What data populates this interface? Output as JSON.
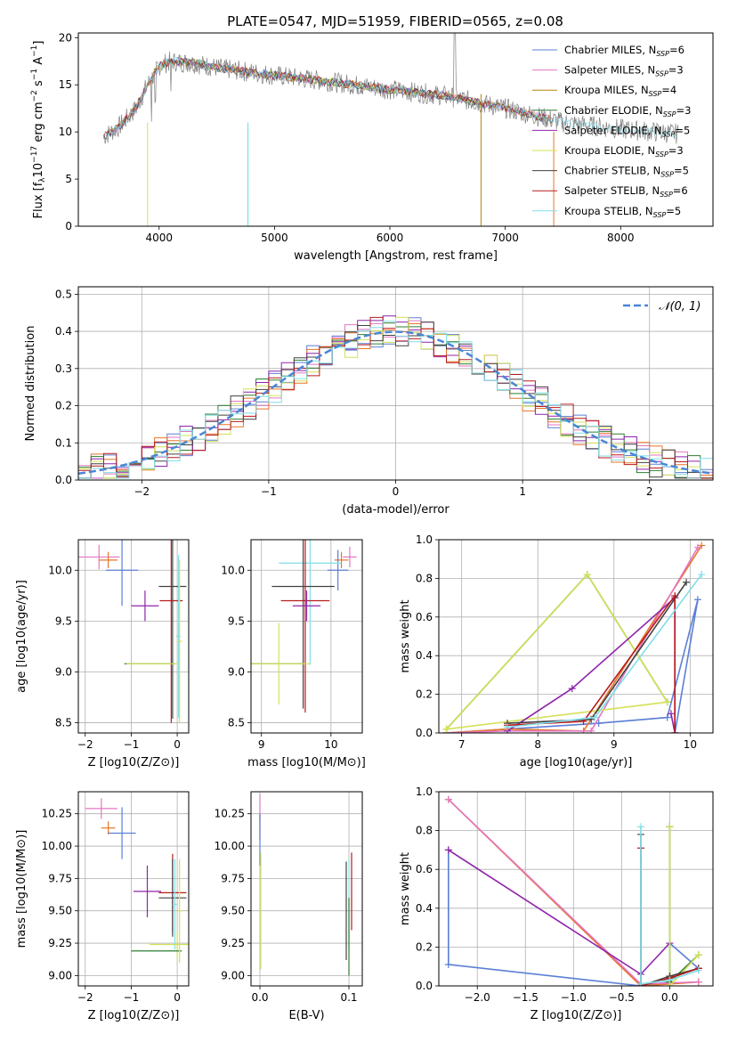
{
  "figure_title": "PLATE=0547, MJD=51959, FIBERID=0565, z=0.08",
  "colors": {
    "Chabrier MILES": "#5b7fd6",
    "Salpeter MILES": "#e377c2",
    "Kroupa MILES": "#b8860b",
    "Chabrier ELODIE": "#2e7d32",
    "Salpeter ELODIE": "#8e24aa",
    "Kroupa ELODIE": "#d4e157",
    "Chabrier STELIB": "#424242",
    "Salpeter STELIB": "#b71c1c",
    "Kroupa STELIB": "#80deea",
    "orange": "#e8742a",
    "data": "#808080",
    "gaussian": "#4a86d4"
  },
  "chart_data": [
    {
      "id": "spectrum",
      "type": "line",
      "title": "PLATE=0547, MJD=51959, FIBERID=0565, z=0.08",
      "xlabel": "wavelength [Angstrom, rest frame]",
      "ylabel": "Flux [f_λ 10^-17 erg cm^-2 s^-1 A^-1]",
      "xlim": [
        3300,
        8800
      ],
      "ylim": [
        0,
        20.5
      ],
      "xticks": [
        4000,
        5000,
        6000,
        7000,
        8000
      ],
      "yticks": [
        0,
        5,
        10,
        15,
        20
      ],
      "grid": false,
      "legend_position": "top-right",
      "legend": [
        {
          "name": "Chabrier MILES",
          "nssp": "6"
        },
        {
          "name": "Salpeter MILES",
          "nssp": "3"
        },
        {
          "name": "Kroupa MILES",
          "nssp": "4"
        },
        {
          "name": "Chabrier ELODIE",
          "nssp": "3"
        },
        {
          "name": "Salpeter ELODIE",
          "nssp": "5"
        },
        {
          "name": "Kroupa ELODIE",
          "nssp": "3"
        },
        {
          "name": "Chabrier STELIB",
          "nssp": "5"
        },
        {
          "name": "Salpeter STELIB",
          "nssp": "6"
        },
        {
          "name": "Kroupa STELIB",
          "nssp": "5"
        }
      ],
      "continuum": {
        "x": [
          3520,
          3650,
          3800,
          3900,
          4000,
          4100,
          4300,
          4500,
          5000,
          5500,
          6000,
          6500,
          7000,
          7500,
          8000,
          8500
        ],
        "y": [
          9.5,
          10.5,
          12.5,
          15,
          17,
          17.5,
          17.3,
          16.8,
          16,
          15.3,
          14.5,
          13.8,
          12.5,
          11,
          10.3,
          9.8
        ]
      }
    },
    {
      "id": "residuals",
      "type": "line",
      "xlabel": "(data-model)/error",
      "ylabel": "Normed distribution",
      "xlim": [
        -2.5,
        2.5
      ],
      "ylim": [
        0,
        0.52
      ],
      "xticks": [
        -2,
        -1,
        0,
        1,
        2
      ],
      "yticks": [
        0.0,
        0.1,
        0.2,
        0.3,
        0.4,
        0.5
      ],
      "grid": true,
      "legend_position": "top-right",
      "legend_label": "𝒩(0, 1)"
    },
    {
      "id": "age_vs_Z",
      "type": "scatter",
      "xlabel": "Z [log10(Z/Z⊙)]",
      "ylabel": "age [log10(age/yr)]",
      "xlim": [
        -2.15,
        0.25
      ],
      "ylim": [
        8.4,
        10.3
      ],
      "xticks": [
        -2,
        -1,
        0
      ],
      "yticks": [
        8.5,
        9.0,
        9.5,
        10.0
      ],
      "points": [
        {
          "series": "Salpeter MILES",
          "x": -1.7,
          "y": 10.13,
          "xerr": 0.45,
          "yerr": 0.12
        },
        {
          "series": "orange",
          "x": -1.5,
          "y": 10.1,
          "xerr": 0.2,
          "yerr": 0.08
        },
        {
          "series": "Chabrier MILES",
          "x": -1.2,
          "y": 10.0,
          "xerr": 0.35,
          "yerr": 0.35
        },
        {
          "series": "Salpeter ELODIE",
          "x": -0.7,
          "y": 9.65,
          "xerr": 0.3,
          "yerr": 0.15
        },
        {
          "series": "Chabrier STELIB",
          "x": -0.1,
          "y": 9.84,
          "xerr": 0.3,
          "yerr": 1.3
        },
        {
          "series": "Salpeter STELIB",
          "x": -0.13,
          "y": 9.7,
          "xerr": 0.25,
          "yerr": 1.2
        },
        {
          "series": "Chabrier ELODIE",
          "x": -0.6,
          "y": 9.08,
          "xerr": 0.55,
          "yerr": 0.0
        },
        {
          "series": "Kroupa ELODIE",
          "x": -0.55,
          "y": 9.08,
          "xerr": 0.55,
          "yerr": 0.0
        },
        {
          "series": "Kroupa STELIB",
          "x": 0.03,
          "y": 9.35,
          "xerr": 0.05,
          "yerr": 0.8
        },
        {
          "series": "Kroupa ELODIE",
          "x": 0.05,
          "y": 9.3,
          "xerr": 0.05,
          "yerr": 0.8
        }
      ]
    },
    {
      "id": "age_vs_mass",
      "type": "scatter",
      "xlabel": "mass [log10(M/M⊙)]",
      "xlim": [
        8.85,
        10.45
      ],
      "ylim": [
        8.4,
        10.3
      ],
      "xticks": [
        9,
        10
      ],
      "yticks": [
        8.5,
        9.0,
        9.5,
        10.0
      ],
      "points": [
        {
          "series": "Salpeter MILES",
          "x": 10.27,
          "y": 10.13,
          "xerr": 0.1,
          "yerr": 0.1
        },
        {
          "series": "orange",
          "x": 10.15,
          "y": 10.1,
          "xerr": 0.1,
          "yerr": 0.08
        },
        {
          "series": "Chabrier MILES",
          "x": 10.1,
          "y": 10.0,
          "xerr": 0.15,
          "yerr": 0.2
        },
        {
          "series": "Kroupa STELIB",
          "x": 9.7,
          "y": 10.07,
          "xerr": 0.45,
          "yerr": 1.0
        },
        {
          "series": "Chabrier STELIB",
          "x": 9.6,
          "y": 9.84,
          "xerr": 0.45,
          "yerr": 1.2
        },
        {
          "series": "Salpeter STELIB",
          "x": 9.63,
          "y": 9.7,
          "xerr": 0.35,
          "yerr": 1.1
        },
        {
          "series": "Salpeter ELODIE",
          "x": 9.65,
          "y": 9.65,
          "xerr": 0.2,
          "yerr": 0.15
        },
        {
          "series": "Chabrier ELODIE",
          "x": 9.2,
          "y": 9.08,
          "xerr": 0.4,
          "yerr": 0.0
        },
        {
          "series": "Kroupa ELODIE",
          "x": 9.25,
          "y": 9.08,
          "xerr": 0.45,
          "yerr": 0.4
        }
      ]
    },
    {
      "id": "weight_vs_age",
      "type": "line",
      "xlabel": "age [log10(age/yr)]",
      "ylabel": "mass weight",
      "xlim": [
        6.7,
        10.3
      ],
      "ylim": [
        0,
        1.0
      ],
      "xticks": [
        7,
        8,
        9,
        10
      ],
      "yticks": [
        0.0,
        0.2,
        0.4,
        0.6,
        0.8,
        1.0
      ],
      "series": [
        {
          "name": "Chabrier MILES",
          "x": [
            6.8,
            7.6,
            8.8,
            9.7,
            10.1,
            9.8
          ],
          "y": [
            0.0,
            0.02,
            0.05,
            0.08,
            0.69,
            0.0
          ]
        },
        {
          "name": "orange",
          "x": [
            6.8,
            7.6,
            8.6,
            10.15
          ],
          "y": [
            0.0,
            0.02,
            0.01,
            0.97
          ]
        },
        {
          "name": "Salpeter MILES",
          "x": [
            6.8,
            7.6,
            8.7,
            10.1
          ],
          "y": [
            0.0,
            0.01,
            0.01,
            0.96
          ]
        },
        {
          "name": "Chabrier ELODIE",
          "x": [
            6.8,
            8.65,
            9.7
          ],
          "y": [
            0.02,
            0.82,
            0.16
          ]
        },
        {
          "name": "Kroupa ELODIE",
          "x": [
            6.8,
            8.65,
            9.7,
            6.8
          ],
          "y": [
            0.02,
            0.82,
            0.16,
            0.02
          ]
        },
        {
          "name": "Salpeter ELODIE",
          "x": [
            7.6,
            8.45,
            9.8,
            9.8,
            9.75
          ],
          "y": [
            0.01,
            0.23,
            0.7,
            0.0,
            0.1
          ]
        },
        {
          "name": "Chabrier STELIB",
          "x": [
            7.6,
            8.7,
            9.95
          ],
          "y": [
            0.05,
            0.07,
            0.78
          ]
        },
        {
          "name": "Salpeter STELIB",
          "x": [
            7.6,
            8.6,
            9.8,
            9.8
          ],
          "y": [
            0.04,
            0.06,
            0.71,
            0.0
          ]
        },
        {
          "name": "Kroupa STELIB",
          "x": [
            7.6,
            8.75,
            10.15
          ],
          "y": [
            0.03,
            0.08,
            0.82
          ]
        }
      ]
    },
    {
      "id": "mass_vs_Z",
      "type": "scatter",
      "xlabel": "Z [log10(Z/Z⊙)]",
      "ylabel": "mass [log10(M/M⊙)]",
      "xlim": [
        -2.15,
        0.25
      ],
      "ylim": [
        8.92,
        10.42
      ],
      "xticks": [
        -2,
        -1,
        0
      ],
      "yticks": [
        9.0,
        9.25,
        9.5,
        9.75,
        10.0,
        10.25
      ],
      "points": [
        {
          "series": "Salpeter MILES",
          "x": -1.65,
          "y": 10.29,
          "xerr": 0.35,
          "yerr": 0.08
        },
        {
          "series": "orange",
          "x": -1.5,
          "y": 10.14,
          "xerr": 0.15,
          "yerr": 0.05
        },
        {
          "series": "Chabrier MILES",
          "x": -1.2,
          "y": 10.1,
          "xerr": 0.3,
          "yerr": 0.2
        },
        {
          "series": "Salpeter ELODIE",
          "x": -0.65,
          "y": 9.65,
          "xerr": 0.3,
          "yerr": 0.2
        },
        {
          "series": "Salpeter STELIB",
          "x": -0.1,
          "y": 9.64,
          "xerr": 0.3,
          "yerr": 0.3
        },
        {
          "series": "Chabrier STELIB",
          "x": -0.1,
          "y": 9.6,
          "xerr": 0.3,
          "yerr": 0.3
        },
        {
          "series": "Kroupa STELIB",
          "x": -0.05,
          "y": 9.55,
          "xerr": 0.05,
          "yerr": 0.35
        },
        {
          "series": "Kroupa ELODIE",
          "x": 0.0,
          "y": 9.24,
          "xerr": 0.6,
          "yerr": 0.1
        },
        {
          "series": "Chabrier ELODIE",
          "x": -0.45,
          "y": 9.19,
          "xerr": 0.55,
          "yerr": 0.0
        },
        {
          "series": "Kroupa ELODIE",
          "x": 0.05,
          "y": 9.5,
          "xerr": 0.05,
          "yerr": 0.4
        }
      ]
    },
    {
      "id": "mass_vs_EBV",
      "type": "scatter",
      "xlabel": "E(B-V)",
      "xlim": [
        -0.01,
        0.115
      ],
      "ylim": [
        8.92,
        10.42
      ],
      "xticks": [
        0.0,
        0.1
      ],
      "yticks": [
        9.0,
        9.25,
        9.5,
        9.75,
        10.0,
        10.25
      ],
      "points": [
        {
          "series": "Salpeter MILES",
          "x": 0.0,
          "y": 10.3,
          "yerr": 0.1
        },
        {
          "series": "orange",
          "x": 0.0,
          "y": 10.15,
          "yerr": 0.1
        },
        {
          "series": "Chabrier MILES",
          "x": 0.0,
          "y": 10.05,
          "yerr": 0.2
        },
        {
          "series": "Kroupa ELODIE",
          "x": 0.001,
          "y": 9.5,
          "yerr": 0.45
        },
        {
          "series": "Chabrier STELIB",
          "x": 0.097,
          "y": 9.5,
          "yerr": 0.38
        },
        {
          "series": "Kroupa STELIB",
          "x": 0.1,
          "y": 9.55,
          "yerr": 0.35
        },
        {
          "series": "Salpeter STELIB",
          "x": 0.103,
          "y": 9.65,
          "yerr": 0.3
        },
        {
          "series": "Chabrier ELODIE",
          "x": 0.1,
          "y": 9.3,
          "yerr": 0.3
        }
      ]
    },
    {
      "id": "weight_vs_Z",
      "type": "line",
      "xlabel": "Z [log10(Z/Z⊙)]",
      "ylabel": "mass weight",
      "xlim": [
        -2.4,
        0.45
      ],
      "ylim": [
        0,
        1.0
      ],
      "xticks": [
        -2.0,
        -1.5,
        -1.0,
        -0.5,
        0.0
      ],
      "yticks": [
        0.0,
        0.2,
        0.4,
        0.6,
        0.8,
        1.0
      ],
      "series": [
        {
          "name": "Chabrier MILES",
          "x": [
            -2.3,
            -2.3,
            -0.3,
            0.0,
            0.0,
            0.3
          ],
          "y": [
            0.7,
            0.11,
            0.0,
            0.02,
            0.22,
            0.09
          ]
        },
        {
          "name": "orange",
          "x": [
            -2.3,
            -0.3,
            0.3
          ],
          "y": [
            0.96,
            0.0,
            0.02
          ]
        },
        {
          "name": "Salpeter MILES",
          "x": [
            -2.3,
            -0.3,
            0.3
          ],
          "y": [
            0.96,
            0.01,
            0.02
          ]
        },
        {
          "name": "Salpeter ELODIE",
          "x": [
            -2.3,
            -0.3,
            0.0
          ],
          "y": [
            0.7,
            0.06,
            0.22
          ]
        },
        {
          "name": "Chabrier ELODIE",
          "x": [
            0.0,
            0.0,
            0.3
          ],
          "y": [
            0.82,
            0.02,
            0.16
          ]
        },
        {
          "name": "Kroupa ELODIE",
          "x": [
            0.0,
            0.0,
            0.3
          ],
          "y": [
            0.82,
            0.0,
            0.16
          ]
        },
        {
          "name": "Chabrier STELIB",
          "x": [
            -0.3,
            -0.3,
            0.0,
            0.3
          ],
          "y": [
            0.78,
            0.0,
            0.05,
            0.09
          ]
        },
        {
          "name": "Salpeter STELIB",
          "x": [
            -0.3,
            -0.3,
            0.0,
            0.3
          ],
          "y": [
            0.71,
            0.0,
            0.04,
            0.09
          ]
        },
        {
          "name": "Kroupa STELIB",
          "x": [
            -0.3,
            -0.3,
            0.0,
            0.3
          ],
          "y": [
            0.82,
            0.01,
            0.03,
            0.08
          ]
        }
      ]
    }
  ]
}
